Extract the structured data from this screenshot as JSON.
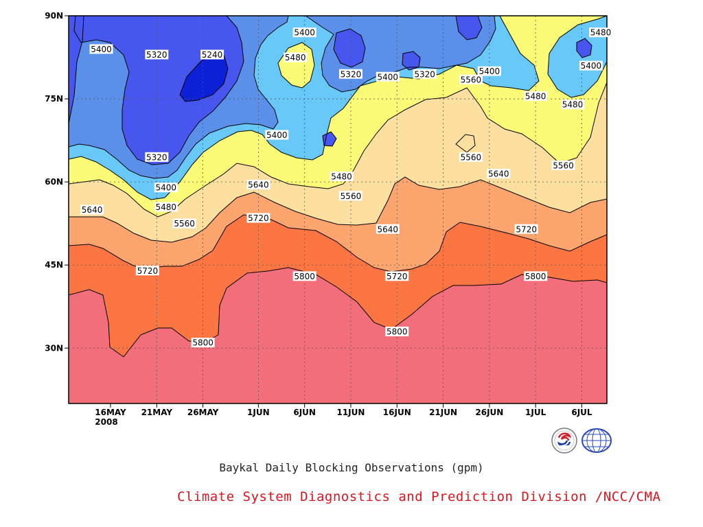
{
  "chart_data": {
    "type": "contour",
    "title": "Baykal Daily Blocking Observations (gpm)",
    "credit": "Climate System Diagnostics and Prediction Division /NCC/CMA",
    "year_label": "2008",
    "x_ticks": [
      "16MAY",
      "21MAY",
      "26MAY",
      "1JUN",
      "6JUN",
      "11JUN",
      "16JUN",
      "21JUN",
      "26JUN",
      "1JUL",
      "6JUL"
    ],
    "y_ticks": [
      "30N",
      "45N",
      "60N",
      "75N",
      "90N"
    ],
    "y_values": [
      30,
      45,
      60,
      75,
      90
    ],
    "ylim": [
      20,
      90
    ],
    "grid": true,
    "levels": [
      5240,
      5320,
      5400,
      5480,
      5560,
      5640,
      5720,
      5800
    ],
    "fill_colors": [
      "#0c20d6",
      "#4656ee",
      "#5a90ea",
      "#68c8f8",
      "#fbfb78",
      "#fde0a0",
      "#fca56e",
      "#fc7644",
      "#f26e7a"
    ],
    "contour_labels": [
      {
        "text": "5400",
        "date": "15MAY",
        "lat": 84
      },
      {
        "text": "5320",
        "date": "21MAY",
        "lat": 83
      },
      {
        "text": "5240",
        "date": "27MAY",
        "lat": 83
      },
      {
        "text": "5400",
        "date": "6JUN",
        "lat": 87
      },
      {
        "text": "5480",
        "date": "5JUN",
        "lat": 82.5
      },
      {
        "text": "5320",
        "date": "11JUN",
        "lat": 79.5
      },
      {
        "text": "5400",
        "date": "15JUN",
        "lat": 79
      },
      {
        "text": "5320",
        "date": "19JUN",
        "lat": 79.5
      },
      {
        "text": "5400",
        "date": "26JUN",
        "lat": 80
      },
      {
        "text": "5560",
        "date": "24JUN",
        "lat": 78.5
      },
      {
        "text": "5480",
        "date": "1JUL",
        "lat": 75.5
      },
      {
        "text": "5480",
        "date": "9JUL",
        "lat": 87
      },
      {
        "text": "5400",
        "date": "7JUL",
        "lat": 81
      },
      {
        "text": "5480",
        "date": "5JUL",
        "lat": 74
      },
      {
        "text": "5400",
        "date": "3JUN",
        "lat": 68.5
      },
      {
        "text": "5320",
        "date": "21MAY",
        "lat": 64.5
      },
      {
        "text": "5560",
        "date": "24JUN",
        "lat": 64.5
      },
      {
        "text": "5560",
        "date": "4JUL",
        "lat": 63
      },
      {
        "text": "5640",
        "date": "1JUN",
        "lat": 59.5
      },
      {
        "text": "5480",
        "date": "10JUN",
        "lat": 61
      },
      {
        "text": "5400",
        "date": "22MAY",
        "lat": 59
      },
      {
        "text": "5640",
        "date": "27JUN",
        "lat": 61.5
      },
      {
        "text": "5560",
        "date": "11JUN",
        "lat": 57.5
      },
      {
        "text": "5480",
        "date": "22MAY",
        "lat": 55.5
      },
      {
        "text": "5640",
        "date": "14MAY",
        "lat": 55
      },
      {
        "text": "5560",
        "date": "24MAY",
        "lat": 52.5
      },
      {
        "text": "5720",
        "date": "1JUN",
        "lat": 53.5
      },
      {
        "text": "5640",
        "date": "15JUN",
        "lat": 51.5
      },
      {
        "text": "5720",
        "date": "30JUN",
        "lat": 51.5
      },
      {
        "text": "5720",
        "date": "20MAY",
        "lat": 44
      },
      {
        "text": "5800",
        "date": "6JUN",
        "lat": 43
      },
      {
        "text": "5720",
        "date": "16JUN",
        "lat": 43
      },
      {
        "text": "5800",
        "date": "1JUL",
        "lat": 43
      },
      {
        "text": "5800",
        "date": "16JUN",
        "lat": 33
      },
      {
        "text": "5800",
        "date": "26MAY",
        "lat": 31
      }
    ]
  }
}
